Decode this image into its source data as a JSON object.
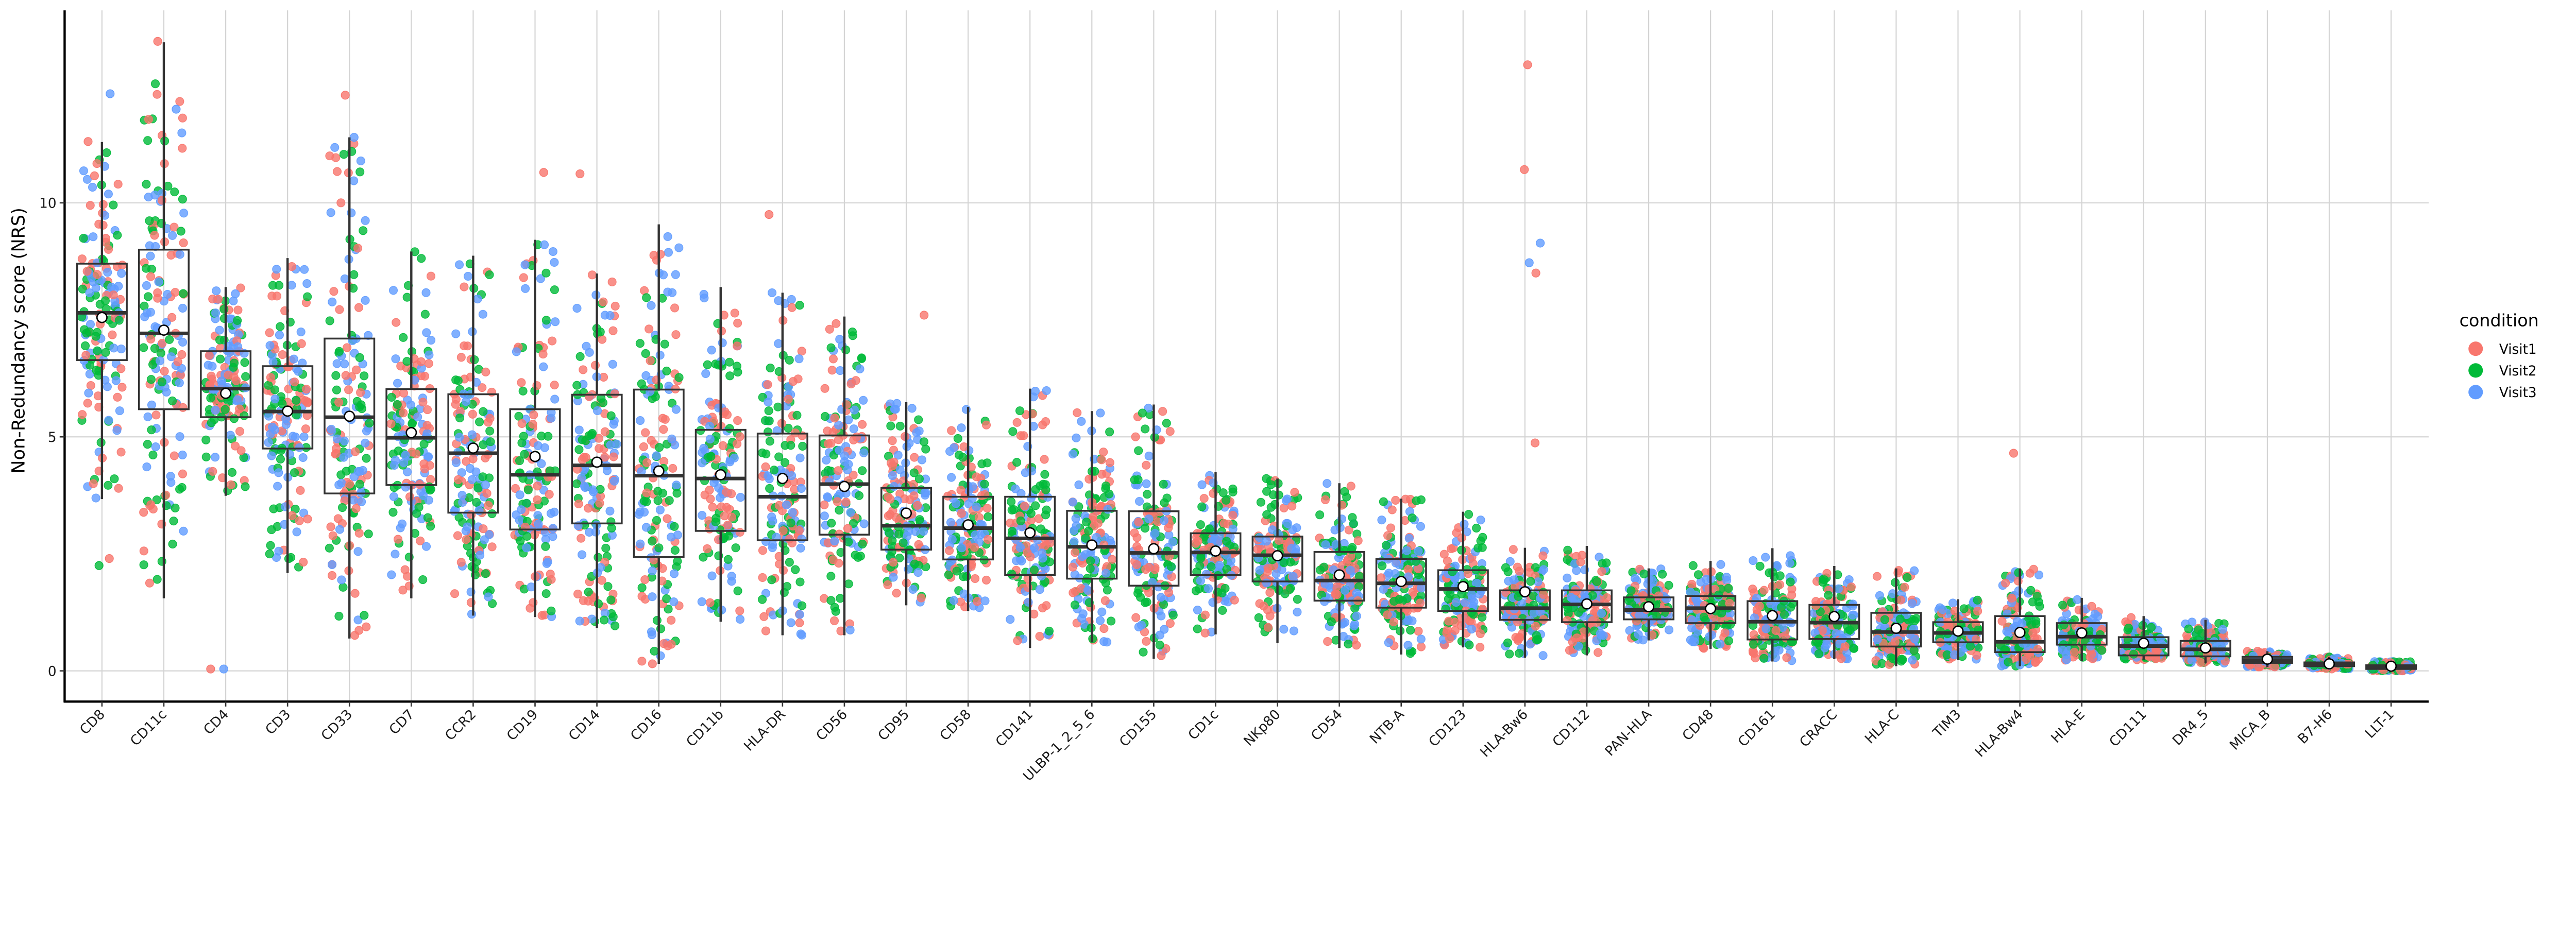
{
  "chart_data": {
    "type": "box",
    "title": "",
    "xlabel": "",
    "ylabel": "Non-Redundancy score (NRS)",
    "ylim": [
      -0.6,
      14.2
    ],
    "yticks": [
      0,
      5,
      10
    ],
    "grid": true,
    "legend": {
      "title": "condition",
      "placement": "right",
      "entries": [
        {
          "name": "Visit1",
          "color": "#F8766D"
        },
        {
          "name": "Visit2",
          "color": "#00BA38"
        },
        {
          "name": "Visit3",
          "color": "#619CFF"
        }
      ]
    },
    "categories": [
      "CD8",
      "CD11c",
      "CD4",
      "CD3",
      "CD33",
      "CD7",
      "CCR2",
      "CD19",
      "CD14",
      "CD16",
      "CD11b",
      "HLA-DR",
      "CD56",
      "CD95",
      "CD58",
      "CD141",
      "ULBP-1_2_5_6",
      "CD155",
      "CD1c",
      "NKp80",
      "CD54",
      "NTB-A",
      "CD123",
      "HLA-Bw6",
      "CD112",
      "PAN-HLA",
      "CD48",
      "CD161",
      "CRACC",
      "HLA-C",
      "TIM3",
      "HLA-Bw4",
      "HLA-E",
      "CD111",
      "DR4_5",
      "MICA_B",
      "B7-H6",
      "LLT-1"
    ],
    "boxes": [
      {
        "q1": 6.64,
        "median": 7.65,
        "q3": 8.7,
        "mean": 7.55,
        "whisker_low": 3.67,
        "whisker_high": 11.3
      },
      {
        "q1": 5.59,
        "median": 7.21,
        "q3": 9.0,
        "mean": 7.28,
        "whisker_low": 1.55,
        "whisker_high": 13.43
      },
      {
        "q1": 5.42,
        "median": 6.03,
        "q3": 6.83,
        "mean": 5.93,
        "whisker_low": 3.74,
        "whisker_high": 8.2
      },
      {
        "q1": 4.75,
        "median": 5.54,
        "q3": 6.51,
        "mean": 5.55,
        "whisker_low": 2.09,
        "whisker_high": 8.82
      },
      {
        "q1": 3.79,
        "median": 5.42,
        "q3": 7.1,
        "mean": 5.44,
        "whisker_low": 0.69,
        "whisker_high": 11.4
      },
      {
        "q1": 3.97,
        "median": 4.98,
        "q3": 6.02,
        "mean": 5.09,
        "whisker_low": 1.55,
        "whisker_high": 8.96
      },
      {
        "q1": 3.38,
        "median": 4.65,
        "q3": 5.91,
        "mean": 4.76,
        "whisker_low": 1.18,
        "whisker_high": 8.87
      },
      {
        "q1": 3.02,
        "median": 4.19,
        "q3": 5.59,
        "mean": 4.58,
        "whisker_low": 1.15,
        "whisker_high": 9.21
      },
      {
        "q1": 3.15,
        "median": 4.39,
        "q3": 5.9,
        "mean": 4.46,
        "whisker_low": 0.92,
        "whisker_high": 8.49
      },
      {
        "q1": 2.43,
        "median": 4.17,
        "q3": 6.01,
        "mean": 4.27,
        "whisker_low": 0.15,
        "whisker_high": 9.54
      },
      {
        "q1": 2.99,
        "median": 4.11,
        "q3": 5.15,
        "mean": 4.19,
        "whisker_low": 1.05,
        "whisker_high": 8.2
      },
      {
        "q1": 2.79,
        "median": 3.72,
        "q3": 5.07,
        "mean": 4.11,
        "whisker_low": 0.76,
        "whisker_high": 8.08
      },
      {
        "q1": 2.91,
        "median": 3.99,
        "q3": 5.03,
        "mean": 3.94,
        "whisker_low": 0.76,
        "whisker_high": 7.57
      },
      {
        "q1": 2.59,
        "median": 3.1,
        "q3": 3.91,
        "mean": 3.37,
        "whisker_low": 1.4,
        "whisker_high": 5.74
      },
      {
        "q1": 2.38,
        "median": 3.05,
        "q3": 3.72,
        "mean": 3.12,
        "whisker_low": 1.28,
        "whisker_high": 5.64
      },
      {
        "q1": 2.05,
        "median": 2.83,
        "q3": 3.72,
        "mean": 2.95,
        "whisker_low": 0.49,
        "whisker_high": 6.03
      },
      {
        "q1": 1.97,
        "median": 2.65,
        "q3": 3.42,
        "mean": 2.69,
        "whisker_low": 0.61,
        "whisker_high": 5.55
      },
      {
        "q1": 1.82,
        "median": 2.52,
        "q3": 3.41,
        "mean": 2.61,
        "whisker_low": 0.26,
        "whisker_high": 5.69
      },
      {
        "q1": 2.05,
        "median": 2.53,
        "q3": 2.94,
        "mean": 2.56,
        "whisker_low": 0.78,
        "whisker_high": 4.25
      },
      {
        "q1": 1.91,
        "median": 2.47,
        "q3": 2.87,
        "mean": 2.46,
        "whisker_low": 0.59,
        "whisker_high": 4.11
      },
      {
        "q1": 1.5,
        "median": 1.93,
        "q3": 2.54,
        "mean": 2.05,
        "whisker_low": 0.49,
        "whisker_high": 4.01
      },
      {
        "q1": 1.35,
        "median": 1.87,
        "q3": 2.39,
        "mean": 1.91,
        "whisker_low": 0.35,
        "whisker_high": 3.68
      },
      {
        "q1": 1.28,
        "median": 1.75,
        "q3": 2.15,
        "mean": 1.8,
        "whisker_low": 0.5,
        "whisker_high": 3.4
      },
      {
        "q1": 1.09,
        "median": 1.34,
        "q3": 1.72,
        "mean": 1.69,
        "whisker_low": 0.28,
        "whisker_high": 2.63
      },
      {
        "q1": 1.04,
        "median": 1.42,
        "q3": 1.72,
        "mean": 1.43,
        "whisker_low": 0.33,
        "whisker_high": 2.67
      },
      {
        "q1": 1.1,
        "median": 1.3,
        "q3": 1.57,
        "mean": 1.37,
        "whisker_low": 0.65,
        "whisker_high": 2.19
      },
      {
        "q1": 1.02,
        "median": 1.34,
        "q3": 1.6,
        "mean": 1.33,
        "whisker_low": 0.47,
        "whisker_high": 2.35
      },
      {
        "q1": 0.67,
        "median": 1.05,
        "q3": 1.49,
        "mean": 1.18,
        "whisker_low": 0.2,
        "whisker_high": 2.62
      },
      {
        "q1": 0.68,
        "median": 1.03,
        "q3": 1.41,
        "mean": 1.16,
        "whisker_low": 0.25,
        "whisker_high": 2.24
      },
      {
        "q1": 0.52,
        "median": 0.83,
        "q3": 1.24,
        "mean": 0.91,
        "whisker_low": 0.1,
        "whisker_high": 2.19
      },
      {
        "q1": 0.61,
        "median": 0.81,
        "q3": 1.04,
        "mean": 0.85,
        "whisker_low": 0.23,
        "whisker_high": 1.53
      },
      {
        "q1": 0.4,
        "median": 0.62,
        "q3": 1.17,
        "mean": 0.82,
        "whisker_low": 0.1,
        "whisker_high": 2.19
      },
      {
        "q1": 0.56,
        "median": 0.73,
        "q3": 1.02,
        "mean": 0.81,
        "whisker_low": 0.21,
        "whisker_high": 1.56
      },
      {
        "q1": 0.33,
        "median": 0.53,
        "q3": 0.72,
        "mean": 0.59,
        "whisker_low": 0.23,
        "whisker_high": 1.17
      },
      {
        "q1": 0.31,
        "median": 0.46,
        "q3": 0.64,
        "mean": 0.49,
        "whisker_low": 0.16,
        "whisker_high": 1.09
      },
      {
        "q1": 0.17,
        "median": 0.23,
        "q3": 0.3,
        "mean": 0.25,
        "whisker_low": 0.08,
        "whisker_high": 0.42
      },
      {
        "q1": 0.1,
        "median": 0.15,
        "q3": 0.18,
        "mean": 0.15,
        "whisker_low": 0.04,
        "whisker_high": 0.3
      },
      {
        "q1": 0.04,
        "median": 0.08,
        "q3": 0.12,
        "mean": 0.1,
        "whisker_low": 0.0,
        "whisker_high": 0.2
      }
    ],
    "points_per_category": 150,
    "notable_outliers": [
      {
        "category": "CD8",
        "condition": "Visit3",
        "value": 12.33
      },
      {
        "category": "CD8",
        "condition": "Visit1",
        "value": 11.31
      },
      {
        "category": "CD8",
        "condition": "Visit1",
        "value": 2.4
      },
      {
        "category": "CD8",
        "condition": "Visit2",
        "value": 2.25
      },
      {
        "category": "CD11c",
        "condition": "Visit1",
        "value": 13.45
      },
      {
        "category": "CD11c",
        "condition": "Visit3",
        "value": 12.0
      },
      {
        "category": "CD4",
        "condition": "Visit3",
        "value": 0.04
      },
      {
        "category": "CD4",
        "condition": "Visit1",
        "value": 0.04
      },
      {
        "category": "CD33",
        "condition": "Visit1",
        "value": 12.3
      },
      {
        "category": "CD33",
        "condition": "Visit3",
        "value": 11.4
      },
      {
        "category": "CD19",
        "condition": "Visit1",
        "value": 10.65
      },
      {
        "category": "CD14",
        "condition": "Visit1",
        "value": 10.62
      },
      {
        "category": "HLA-DR",
        "condition": "Visit1",
        "value": 9.75
      },
      {
        "category": "CD95",
        "condition": "Visit1",
        "value": 7.6
      },
      {
        "category": "HLA-Bw6",
        "condition": "Visit1",
        "value": 12.95
      },
      {
        "category": "HLA-Bw6",
        "condition": "Visit1",
        "value": 10.71
      },
      {
        "category": "HLA-Bw6",
        "condition": "Visit3",
        "value": 9.14
      },
      {
        "category": "HLA-Bw6",
        "condition": "Visit3",
        "value": 8.72
      },
      {
        "category": "HLA-Bw6",
        "condition": "Visit1",
        "value": 8.5
      },
      {
        "category": "HLA-Bw6",
        "condition": "Visit1",
        "value": 4.87
      },
      {
        "category": "HLA-Bw4",
        "condition": "Visit1",
        "value": 4.65
      }
    ]
  }
}
